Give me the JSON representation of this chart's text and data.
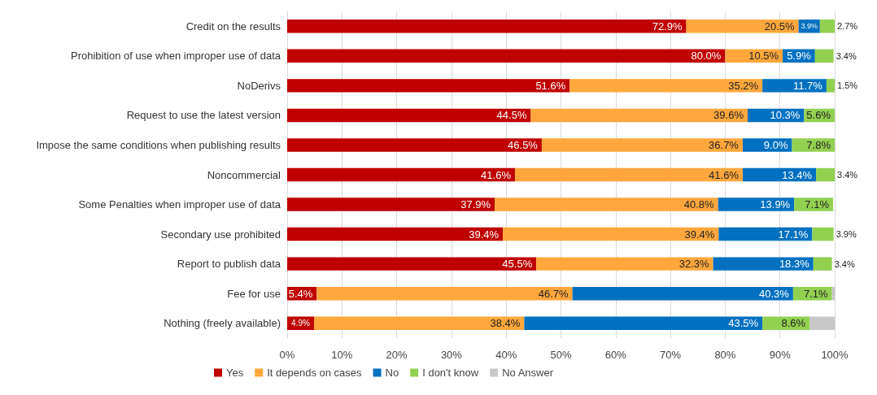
{
  "chart_data": {
    "type": "bar",
    "orientation": "horizontal",
    "stacked": true,
    "categories": [
      "Credit on the results",
      "Prohibition of use when improper use of data",
      "NoDerivs",
      "Request to use the latest version",
      "Impose the same conditions when publishing results",
      "Noncommercial",
      "Some Penalties when improper use of data",
      "Secondary use prohibited",
      "Report to publish data",
      "Fee for use",
      "Nothing (freely available)"
    ],
    "series": [
      {
        "name": "Yes",
        "color": "#c00000",
        "values": [
          72.9,
          80.0,
          51.6,
          44.5,
          46.5,
          41.6,
          37.9,
          39.4,
          45.5,
          5.4,
          4.9
        ],
        "value_labels": [
          "72.9%",
          "80.0%",
          "51.6%",
          "44.5%",
          "46.5%",
          "41.6%",
          "37.9%",
          "39.4%",
          "45.5%",
          "5.4%",
          "4.9%"
        ]
      },
      {
        "name": "It depends on cases",
        "color": "#ffa73d",
        "values": [
          20.5,
          10.5,
          35.2,
          39.6,
          36.7,
          41.6,
          40.8,
          39.4,
          32.3,
          46.7,
          38.4
        ],
        "value_labels": [
          "20.5%",
          "10.5%",
          "35.2%",
          "39.6%",
          "36.7%",
          "41.6%",
          "40.8%",
          "39.4%",
          "32.3%",
          "46.7%",
          "38.4%"
        ]
      },
      {
        "name": "No",
        "color": "#0070c0",
        "values": [
          3.9,
          5.9,
          11.7,
          10.3,
          9.0,
          13.4,
          13.9,
          17.1,
          18.3,
          40.3,
          43.5
        ],
        "value_labels": [
          "3.9%",
          "5.9%",
          "11.7%",
          "10.3%",
          "9.0%",
          "13.4%",
          "13.9%",
          "17.1%",
          "18.3%",
          "40.3%",
          "43.5%"
        ]
      },
      {
        "name": "I don't know",
        "color": "#92d050",
        "values": [
          2.7,
          3.4,
          1.5,
          5.6,
          7.8,
          3.4,
          7.1,
          3.9,
          3.4,
          7.1,
          8.6
        ],
        "value_labels": [
          "2.7%",
          "3.4%",
          "1.5%",
          "5.6%",
          "7.8%",
          "3.4%",
          "7.1%",
          "3.9%",
          "3.4%",
          "7.1%",
          "8.6%"
        ]
      },
      {
        "name": "No Answer",
        "color": "#c8c8c8",
        "values": [
          null,
          null,
          null,
          null,
          null,
          null,
          null,
          null,
          null,
          0.5,
          4.6
        ]
      }
    ],
    "xlim": [
      0,
      100
    ],
    "xticks": [
      {
        "value": 0,
        "label": "0%"
      },
      {
        "value": 10,
        "label": "10%"
      },
      {
        "value": 20,
        "label": "20%"
      },
      {
        "value": 30,
        "label": "30%"
      },
      {
        "value": 40,
        "label": "40%"
      },
      {
        "value": 50,
        "label": "50%"
      },
      {
        "value": 60,
        "label": "60%"
      },
      {
        "value": 70,
        "label": "70%"
      },
      {
        "value": 80,
        "label": "80%"
      },
      {
        "value": 90,
        "label": "90%"
      },
      {
        "value": 100,
        "label": "100%"
      }
    ],
    "grid": "x",
    "legend": "bottom left"
  }
}
